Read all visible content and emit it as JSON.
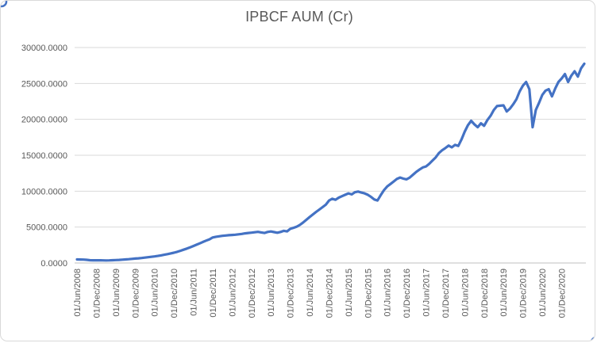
{
  "window": {
    "background": "#ffffff",
    "border_color": "#d9d9d9",
    "selection_handle_color": "#4472c4"
  },
  "chart_data": {
    "type": "line",
    "title": "IPBCF AUM (Cr)",
    "xlabel": "",
    "ylabel": "",
    "ylim": [
      0,
      30000
    ],
    "y_step": 5000,
    "grid": true,
    "legend_position": "none",
    "axis_label_color": "#595959",
    "title_color": "#595959",
    "gridline_color": "#d9d9d9",
    "axis_line_color": "#bfbfbf",
    "x_frequency": "monthly",
    "x_start": "01/Jun/2008",
    "y_tick_labels": [
      "0.0000",
      "5000.0000",
      "10000.0000",
      "15000.0000",
      "20000.0000",
      "25000.0000",
      "30000.0000"
    ],
    "x_tick_labels": [
      "01/Jun/2008",
      "01/Dec/2008",
      "01/Jun/2009",
      "01/Dec/2009",
      "01/Jun/2010",
      "01/Dec/2010",
      "01/Jun/2011",
      "01/Dec/2011",
      "01/Jun/2012",
      "01/Dec/2012",
      "01/Jun/2013",
      "01/Dec/2013",
      "01/Jun/2014",
      "01/Dec/2014",
      "01/Jun/2015",
      "01/Dec/2015",
      "01/Jun/2016",
      "01/Dec/2016",
      "01/Jun/2017",
      "01/Dec/2017",
      "01/Jun/2018",
      "01/Dec/2018",
      "01/Jun/2019",
      "01/Dec/2019",
      "01/Jun/2020",
      "01/Dec/2020"
    ],
    "series": [
      {
        "name": "IPBCF AUM (Cr)",
        "color": "#4472c4",
        "line_width": 3.2,
        "values": [
          500,
          490,
          470,
          440,
          390,
          370,
          380,
          375,
          365,
          355,
          365,
          385,
          405,
          430,
          460,
          495,
          530,
          570,
          615,
          655,
          700,
          750,
          800,
          855,
          915,
          985,
          1060,
          1145,
          1235,
          1330,
          1430,
          1560,
          1700,
          1850,
          2010,
          2180,
          2360,
          2550,
          2740,
          2930,
          3120,
          3300,
          3550,
          3650,
          3720,
          3780,
          3830,
          3870,
          3900,
          3940,
          3990,
          4050,
          4120,
          4180,
          4220,
          4280,
          4330,
          4260,
          4180,
          4320,
          4390,
          4300,
          4210,
          4320,
          4480,
          4400,
          4750,
          4900,
          5060,
          5300,
          5650,
          6020,
          6400,
          6760,
          7110,
          7450,
          7780,
          8120,
          8700,
          8950,
          8800,
          9100,
          9300,
          9500,
          9700,
          9550,
          9850,
          9950,
          9800,
          9700,
          9500,
          9200,
          8850,
          8700,
          9450,
          10150,
          10650,
          11000,
          11350,
          11700,
          11900,
          11750,
          11650,
          11900,
          12300,
          12700,
          13000,
          13300,
          13450,
          13800,
          14250,
          14700,
          15300,
          15700,
          16000,
          16350,
          16100,
          16450,
          16300,
          17200,
          18300,
          19200,
          19800,
          19300,
          18900,
          19450,
          19100,
          19900,
          20500,
          21300,
          21850,
          21900,
          21950,
          21100,
          21500,
          22100,
          22800,
          23900,
          24700,
          25200,
          24200,
          18900,
          21300,
          22300,
          23400,
          24000,
          24200,
          23200,
          24300,
          25200,
          25700,
          26300,
          25200,
          26100,
          26700,
          25950,
          27100,
          27750
        ]
      }
    ]
  }
}
